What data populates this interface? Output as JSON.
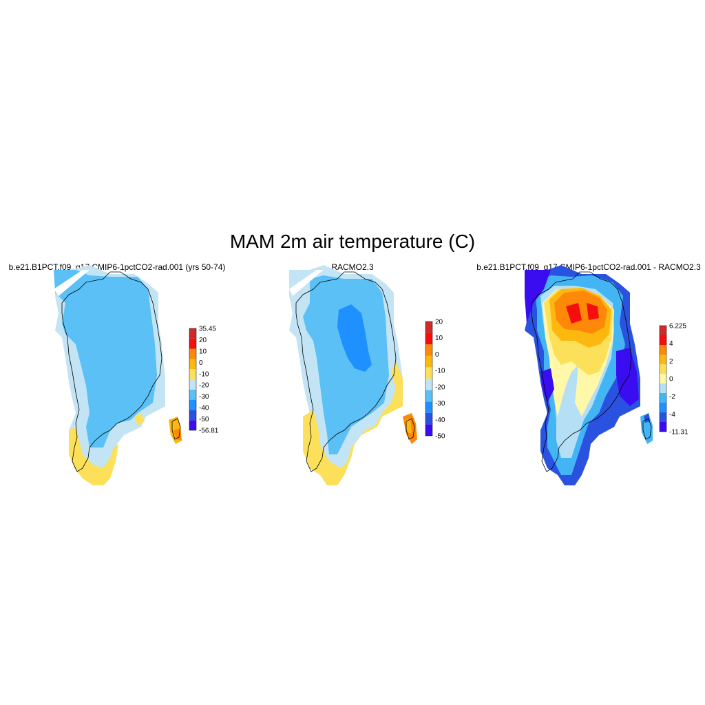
{
  "figure": {
    "title": "MAM 2m air temperature (C)"
  },
  "panels": [
    {
      "id": "model",
      "title": "b.e21.B1PCT.f09_g17.CMIP6-1pctCO2-rad.001 (yrs 50-74)",
      "colorbar": {
        "colors": [
          "#3a0df0",
          "#2a52e0",
          "#1e90ff",
          "#5ac0f5",
          "#c3e4f5",
          "#fde05a",
          "#fdb80f",
          "#fe8808",
          "#f50e0e",
          "#cf2a2a"
        ],
        "labels": [
          "-56.81",
          "-50",
          "-40",
          "-30",
          "-20",
          "-10",
          "0",
          "10",
          "20",
          "35.45"
        ],
        "min": -56.81,
        "max": 35.45
      }
    },
    {
      "id": "obs",
      "title": "RACMO2.3",
      "colorbar": {
        "colors": [
          "#3a0df0",
          "#2a52e0",
          "#1e90ff",
          "#5ac0f5",
          "#c3e4f5",
          "#fde05a",
          "#fdb80f",
          "#fe8808",
          "#f50e0e",
          "#cf2a2a"
        ],
        "labels": [
          "-50",
          "-40",
          "-30",
          "-20",
          "-10",
          "0",
          "10",
          "20"
        ]
      }
    },
    {
      "id": "diff",
      "title": "b.e21.B1PCT.f09_g17.CMIP6-1pctCO2-rad.001 - RACMO2.3",
      "colorbar": {
        "colors": [
          "#3a0df0",
          "#2a52e0",
          "#1e90ff",
          "#43b5f5",
          "#b5dff5",
          "#fff8a8",
          "#fde05a",
          "#fdb80f",
          "#fe8808",
          "#f50e0e",
          "#cf2a2a"
        ],
        "labels": [
          "-11.31",
          "-4",
          "-2",
          "0",
          "2",
          "4",
          "6.225"
        ],
        "min": -11.31,
        "max": 6.225
      }
    }
  ]
}
